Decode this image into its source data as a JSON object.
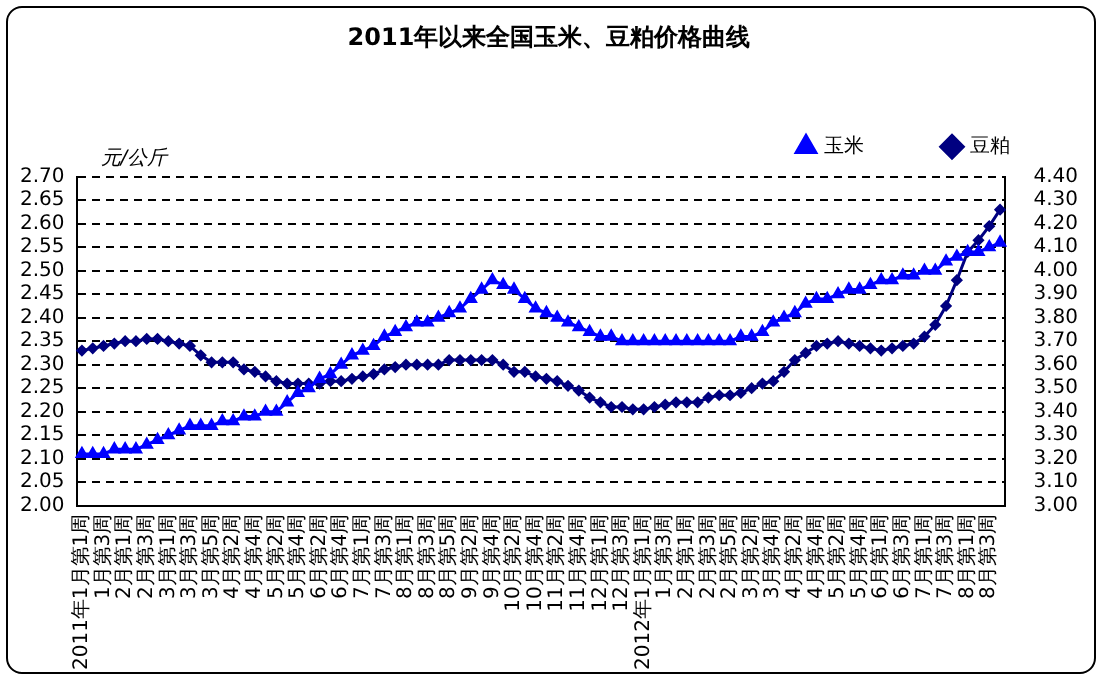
{
  "chart_data": {
    "type": "line",
    "title": "2011年以来全国玉米、豆粕价格曲线",
    "ylabel": "元/公斤",
    "categories": [
      "2011年1月第1周",
      null,
      "1月第3周",
      null,
      "2月第1周",
      null,
      "2月第3周",
      null,
      "3月第1周",
      null,
      "3月第3周",
      null,
      "3月第5周",
      null,
      "4月第2周",
      null,
      "4月第4周",
      null,
      "5月第2周",
      null,
      "5月第4周",
      null,
      "6月第2周",
      null,
      "6月第4周",
      null,
      "7月第1周",
      null,
      "7月第3周",
      null,
      "8月第1周",
      null,
      "8月第3周",
      null,
      "8月第5周",
      null,
      "9月第2周",
      null,
      "9月第4周",
      null,
      "10月第2周",
      null,
      "10月第4周",
      null,
      "11月第2周",
      null,
      "11月第4周",
      null,
      "12月第1周",
      null,
      "12月第3周",
      null,
      "2012年1月第1周",
      null,
      "1月第3周",
      null,
      "2月第1周",
      null,
      "2月第3周",
      null,
      "2月第5周",
      null,
      "3月第2周",
      null,
      "3月第4周",
      null,
      "4月第2周",
      null,
      "4月第4周",
      null,
      "5月第2周",
      null,
      "5月第4周",
      null,
      "6月第1周",
      null,
      "6月第3周",
      null,
      "7月第1周",
      null,
      "7月第3周",
      null,
      "8月第1周",
      null,
      "8月第3周",
      null
    ],
    "series": [
      {
        "name": "玉米",
        "color": "#0000ff",
        "marker": "triangle",
        "values": [
          2.11,
          2.11,
          2.11,
          2.12,
          2.12,
          2.12,
          2.13,
          2.14,
          2.15,
          2.16,
          2.17,
          2.17,
          2.17,
          2.18,
          2.18,
          2.19,
          2.19,
          2.2,
          2.2,
          2.22,
          2.24,
          2.25,
          2.27,
          2.28,
          2.3,
          2.32,
          2.33,
          2.34,
          2.36,
          2.37,
          2.38,
          2.39,
          2.39,
          2.4,
          2.41,
          2.42,
          2.44,
          2.46,
          2.48,
          2.47,
          2.46,
          2.44,
          2.42,
          2.41,
          2.4,
          2.39,
          2.38,
          2.37,
          2.36,
          2.36,
          2.35,
          2.35,
          2.35,
          2.35,
          2.35,
          2.35,
          2.35,
          2.35,
          2.35,
          2.35,
          2.35,
          2.36,
          2.36,
          2.37,
          2.39,
          2.4,
          2.41,
          2.43,
          2.44,
          2.44,
          2.45,
          2.46,
          2.46,
          2.47,
          2.48,
          2.48,
          2.49,
          2.49,
          2.5,
          2.5,
          2.52,
          2.53,
          2.54,
          2.54,
          2.55,
          2.56
        ]
      },
      {
        "name": "豆粕",
        "color": "#000080",
        "marker": "diamond",
        "axis": "y2",
        "values": [
          3.66,
          3.67,
          3.68,
          3.69,
          3.7,
          3.7,
          3.71,
          3.71,
          3.7,
          3.69,
          3.68,
          3.64,
          3.61,
          3.61,
          3.61,
          3.58,
          3.57,
          3.55,
          3.53,
          3.52,
          3.52,
          3.52,
          3.52,
          3.53,
          3.53,
          3.54,
          3.55,
          3.56,
          3.58,
          3.59,
          3.6,
          3.6,
          3.6,
          3.6,
          3.62,
          3.62,
          3.62,
          3.62,
          3.62,
          3.6,
          3.57,
          3.57,
          3.55,
          3.54,
          3.53,
          3.51,
          3.49,
          3.46,
          3.44,
          3.42,
          3.42,
          3.41,
          3.41,
          3.42,
          3.43,
          3.44,
          3.44,
          3.44,
          3.46,
          3.47,
          3.47,
          3.48,
          3.5,
          3.52,
          3.53,
          3.57,
          3.62,
          3.65,
          3.68,
          3.69,
          3.7,
          3.69,
          3.68,
          3.67,
          3.66,
          3.67,
          3.68,
          3.69,
          3.72,
          3.77,
          3.85,
          3.96,
          4.08,
          4.13,
          4.19,
          4.26
        ]
      }
    ],
    "ylim": [
      2.0,
      2.7
    ],
    "yticks": [
      {
        "value": 2.0,
        "label": "2.00"
      },
      {
        "value": 2.05,
        "label": "2.05"
      },
      {
        "value": 2.1,
        "label": "2.10"
      },
      {
        "value": 2.15,
        "label": "2.15"
      },
      {
        "value": 2.2,
        "label": "2.20"
      },
      {
        "value": 2.25,
        "label": "2.25"
      },
      {
        "value": 2.3,
        "label": "2.30"
      },
      {
        "value": 2.35,
        "label": "2.35"
      },
      {
        "value": 2.4,
        "label": "2.40"
      },
      {
        "value": 2.45,
        "label": "2.45"
      },
      {
        "value": 2.5,
        "label": "2.50"
      },
      {
        "value": 2.55,
        "label": "2.55"
      },
      {
        "value": 2.6,
        "label": "2.60"
      },
      {
        "value": 2.65,
        "label": "2.65"
      },
      {
        "value": 2.7,
        "label": "2.70"
      }
    ],
    "y2lim": [
      3.0,
      4.4
    ],
    "y2ticks": [
      {
        "value": 3.0,
        "label": "3.00"
      },
      {
        "value": 3.1,
        "label": "3.10"
      },
      {
        "value": 3.2,
        "label": "3.20"
      },
      {
        "value": 3.3,
        "label": "3.30"
      },
      {
        "value": 3.4,
        "label": "3.40"
      },
      {
        "value": 3.5,
        "label": "3.50"
      },
      {
        "value": 3.6,
        "label": "3.60"
      },
      {
        "value": 3.7,
        "label": "3.70"
      },
      {
        "value": 3.8,
        "label": "3.80"
      },
      {
        "value": 3.9,
        "label": "3.90"
      },
      {
        "value": 4.0,
        "label": "4.00"
      },
      {
        "value": 4.1,
        "label": "4.10"
      },
      {
        "value": 4.2,
        "label": "4.20"
      },
      {
        "value": 4.3,
        "label": "4.30"
      },
      {
        "value": 4.4,
        "label": "4.40"
      }
    ],
    "grid": "y",
    "legend": "top right"
  }
}
